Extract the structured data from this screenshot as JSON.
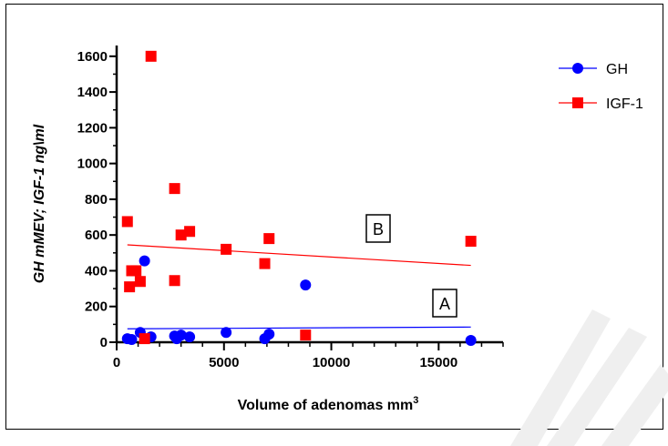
{
  "chart_data": {
    "type": "scatter",
    "title": "",
    "xlabel": "Volume of adenomas mm",
    "xlabel_sup": "3",
    "ylabel": "GH mMEV; IGF-1 ng\\ml",
    "xlim": [
      0,
      18000
    ],
    "ylim": [
      0,
      1650
    ],
    "x_ticks": [
      0,
      5000,
      10000,
      15000
    ],
    "x_tick_labels": [
      "0",
      "5000",
      "10000",
      "15000"
    ],
    "x_minor_step": 1000,
    "y_ticks": [
      0,
      200,
      400,
      600,
      800,
      1000,
      1200,
      1400,
      1600
    ],
    "y_tick_labels": [
      "0",
      "200",
      "400",
      "600",
      "800",
      "1000",
      "1200",
      "1400",
      "1600"
    ],
    "y_minor_step": 100,
    "grid": false,
    "legend_position": "top-right",
    "series": [
      {
        "name": "GH",
        "marker": "circle",
        "color": "#0000ff",
        "points": [
          [
            500,
            20
          ],
          [
            700,
            15
          ],
          [
            1100,
            55
          ],
          [
            1300,
            455
          ],
          [
            1600,
            30
          ],
          [
            2700,
            35
          ],
          [
            2800,
            20
          ],
          [
            3000,
            40
          ],
          [
            3400,
            30
          ],
          [
            5100,
            55
          ],
          [
            6900,
            20
          ],
          [
            7100,
            45
          ],
          [
            8800,
            320
          ],
          [
            16500,
            10
          ]
        ],
        "trendline": [
          [
            500,
            75
          ],
          [
            16500,
            85
          ]
        ],
        "annotation": "A"
      },
      {
        "name": "IGF-1",
        "marker": "square",
        "color": "#ff0000",
        "points": [
          [
            500,
            675
          ],
          [
            600,
            310
          ],
          [
            700,
            400
          ],
          [
            900,
            400
          ],
          [
            1100,
            340
          ],
          [
            1300,
            20
          ],
          [
            1600,
            1600
          ],
          [
            2700,
            860
          ],
          [
            2700,
            345
          ],
          [
            3000,
            600
          ],
          [
            3400,
            620
          ],
          [
            5100,
            520
          ],
          [
            6900,
            440
          ],
          [
            7100,
            580
          ],
          [
            8800,
            40
          ],
          [
            16500,
            565
          ]
        ],
        "trendline": [
          [
            500,
            545
          ],
          [
            16500,
            430
          ]
        ],
        "annotation": "B"
      }
    ]
  }
}
